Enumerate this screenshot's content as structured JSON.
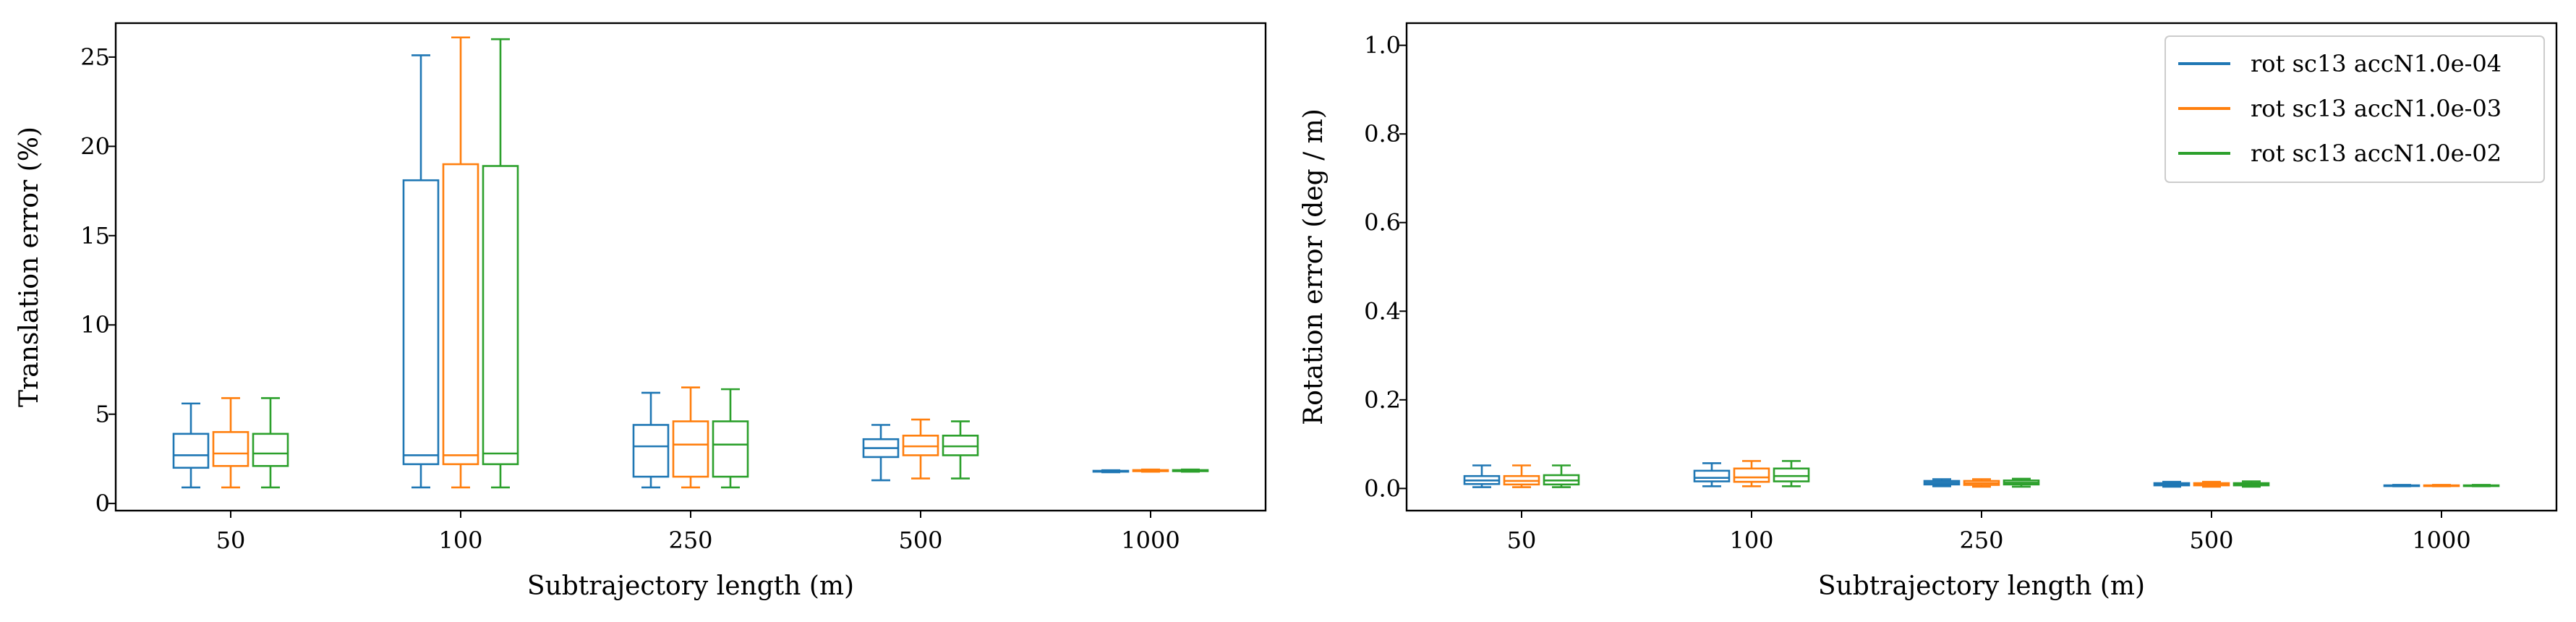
{
  "colors": [
    "#1f77b4",
    "#ff7f0e",
    "#2ca02c"
  ],
  "legend": {
    "position": "top-right",
    "entries": [
      "rot sc13 accN1.0e-04",
      "rot sc13 accN1.0e-03",
      "rot sc13 accN1.0e-02"
    ]
  },
  "chart_data": [
    {
      "type": "box",
      "xlabel": "Subtrajectory length (m)",
      "ylabel": "Translation error (%)",
      "ylim": [
        -0.4,
        26.9
      ],
      "yticks": [
        0,
        5,
        10,
        15,
        20,
        25
      ],
      "ytick_labels": [
        "0",
        "5",
        "10",
        "15",
        "20",
        "25"
      ],
      "categories": [
        "50",
        "100",
        "250",
        "500",
        "1000"
      ],
      "grid": false,
      "series": [
        {
          "name": "rot sc13 accN1.0e-04",
          "boxes": [
            {
              "whislo": 0.9,
              "q1": 2.0,
              "med": 2.7,
              "q3": 3.9,
              "whishi": 5.6
            },
            {
              "whislo": 0.9,
              "q1": 2.2,
              "med": 2.7,
              "q3": 18.1,
              "whishi": 25.1
            },
            {
              "whislo": 0.9,
              "q1": 1.5,
              "med": 3.2,
              "q3": 4.4,
              "whishi": 6.2
            },
            {
              "whislo": 1.3,
              "q1": 2.6,
              "med": 3.1,
              "q3": 3.6,
              "whishi": 4.4
            },
            {
              "whislo": 1.75,
              "q1": 1.78,
              "med": 1.8,
              "q3": 1.83,
              "whishi": 1.86
            }
          ]
        },
        {
          "name": "rot sc13 accN1.0e-03",
          "boxes": [
            {
              "whislo": 0.9,
              "q1": 2.1,
              "med": 2.8,
              "q3": 4.0,
              "whishi": 5.9
            },
            {
              "whislo": 0.9,
              "q1": 2.2,
              "med": 2.7,
              "q3": 19.0,
              "whishi": 26.1
            },
            {
              "whislo": 0.9,
              "q1": 1.5,
              "med": 3.3,
              "q3": 4.6,
              "whishi": 6.5
            },
            {
              "whislo": 1.4,
              "q1": 2.7,
              "med": 3.2,
              "q3": 3.8,
              "whishi": 4.7
            },
            {
              "whislo": 1.78,
              "q1": 1.81,
              "med": 1.84,
              "q3": 1.87,
              "whishi": 1.9
            }
          ]
        },
        {
          "name": "rot sc13 accN1.0e-02",
          "boxes": [
            {
              "whislo": 0.9,
              "q1": 2.1,
              "med": 2.8,
              "q3": 3.9,
              "whishi": 5.9
            },
            {
              "whislo": 0.9,
              "q1": 2.2,
              "med": 2.8,
              "q3": 18.9,
              "whishi": 26.0
            },
            {
              "whislo": 0.9,
              "q1": 1.5,
              "med": 3.3,
              "q3": 4.6,
              "whishi": 6.4
            },
            {
              "whislo": 1.4,
              "q1": 2.7,
              "med": 3.2,
              "q3": 3.8,
              "whishi": 4.6
            },
            {
              "whislo": 1.78,
              "q1": 1.81,
              "med": 1.84,
              "q3": 1.87,
              "whishi": 1.9
            }
          ]
        }
      ]
    },
    {
      "type": "box",
      "xlabel": "Subtrajectory length (m)",
      "ylabel": "Rotation error (deg / m)",
      "ylim": [
        -0.05,
        1.05
      ],
      "yticks": [
        0.0,
        0.2,
        0.4,
        0.6,
        0.8,
        1.0
      ],
      "ytick_labels": [
        "0.0",
        "0.2",
        "0.4",
        "0.6",
        "0.8",
        "1.0"
      ],
      "categories": [
        "50",
        "100",
        "250",
        "500",
        "1000"
      ],
      "grid": false,
      "series": [
        {
          "name": "rot sc13 accN1.0e-04",
          "boxes": [
            {
              "whislo": 0.003,
              "q1": 0.01,
              "med": 0.018,
              "q3": 0.028,
              "whishi": 0.052
            },
            {
              "whislo": 0.005,
              "q1": 0.016,
              "med": 0.024,
              "q3": 0.04,
              "whishi": 0.057
            },
            {
              "whislo": 0.005,
              "q1": 0.009,
              "med": 0.013,
              "q3": 0.017,
              "whishi": 0.021
            },
            {
              "whislo": 0.004,
              "q1": 0.007,
              "med": 0.009,
              "q3": 0.012,
              "whishi": 0.015
            },
            {
              "whislo": 0.005,
              "q1": 0.006,
              "med": 0.0065,
              "q3": 0.007,
              "whishi": 0.008
            }
          ]
        },
        {
          "name": "rot sc13 accN1.0e-03",
          "boxes": [
            {
              "whislo": 0.003,
              "q1": 0.009,
              "med": 0.017,
              "q3": 0.028,
              "whishi": 0.052
            },
            {
              "whislo": 0.005,
              "q1": 0.015,
              "med": 0.025,
              "q3": 0.045,
              "whishi": 0.062
            },
            {
              "whislo": 0.004,
              "q1": 0.008,
              "med": 0.012,
              "q3": 0.017,
              "whishi": 0.021
            },
            {
              "whislo": 0.004,
              "q1": 0.007,
              "med": 0.009,
              "q3": 0.012,
              "whishi": 0.015
            },
            {
              "whislo": 0.005,
              "q1": 0.006,
              "med": 0.0065,
              "q3": 0.007,
              "whishi": 0.008
            }
          ]
        },
        {
          "name": "rot sc13 accN1.0e-02",
          "boxes": [
            {
              "whislo": 0.003,
              "q1": 0.009,
              "med": 0.018,
              "q3": 0.03,
              "whishi": 0.052
            },
            {
              "whislo": 0.005,
              "q1": 0.016,
              "med": 0.028,
              "q3": 0.045,
              "whishi": 0.062
            },
            {
              "whislo": 0.004,
              "q1": 0.009,
              "med": 0.013,
              "q3": 0.018,
              "whishi": 0.022
            },
            {
              "whislo": 0.004,
              "q1": 0.007,
              "med": 0.009,
              "q3": 0.012,
              "whishi": 0.016
            },
            {
              "whislo": 0.005,
              "q1": 0.006,
              "med": 0.0065,
              "q3": 0.007,
              "whishi": 0.008
            }
          ]
        }
      ]
    }
  ]
}
